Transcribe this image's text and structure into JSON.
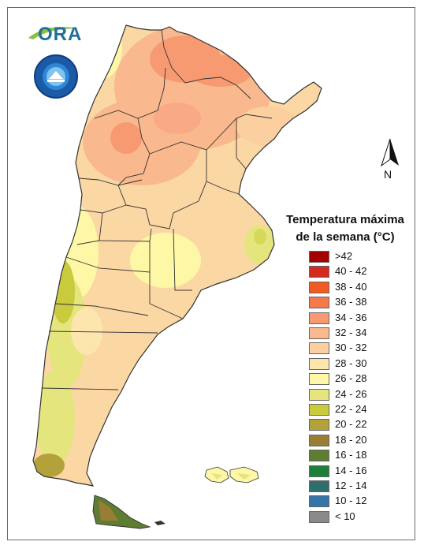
{
  "logo": {
    "ora_text": "ORA"
  },
  "north_arrow": {
    "label": "N"
  },
  "legend": {
    "title_line1": "Temperatura máxima",
    "title_line2": "de la semana (°C)",
    "items": [
      {
        "label": ">42",
        "color": "#a40000"
      },
      {
        "label": "40 - 42",
        "color": "#d42b1e"
      },
      {
        "label": "38 - 40",
        "color": "#f15a22"
      },
      {
        "label": "36 - 38",
        "color": "#f47a4b"
      },
      {
        "label": "34 - 36",
        "color": "#f79a72"
      },
      {
        "label": "32 - 34",
        "color": "#f9b88d"
      },
      {
        "label": "30 - 32",
        "color": "#fbcf9f"
      },
      {
        "label": "28 - 30",
        "color": "#fde6ad"
      },
      {
        "label": "26 - 28",
        "color": "#fdf7a6"
      },
      {
        "label": "24 - 26",
        "color": "#e5e57e"
      },
      {
        "label": "22 - 24",
        "color": "#c9cb3c"
      },
      {
        "label": "20 - 22",
        "color": "#b3a23a"
      },
      {
        "label": "18 - 20",
        "color": "#9a7d35"
      },
      {
        "label": "16 - 18",
        "color": "#5e7d32"
      },
      {
        "label": "14 - 16",
        "color": "#1e7f3a"
      },
      {
        "label": "12 - 14",
        "color": "#2f6f6b"
      },
      {
        "label": "10 - 12",
        "color": "#3774a8"
      },
      {
        "label": "< 10",
        "color": "#8a8a8a"
      }
    ]
  }
}
